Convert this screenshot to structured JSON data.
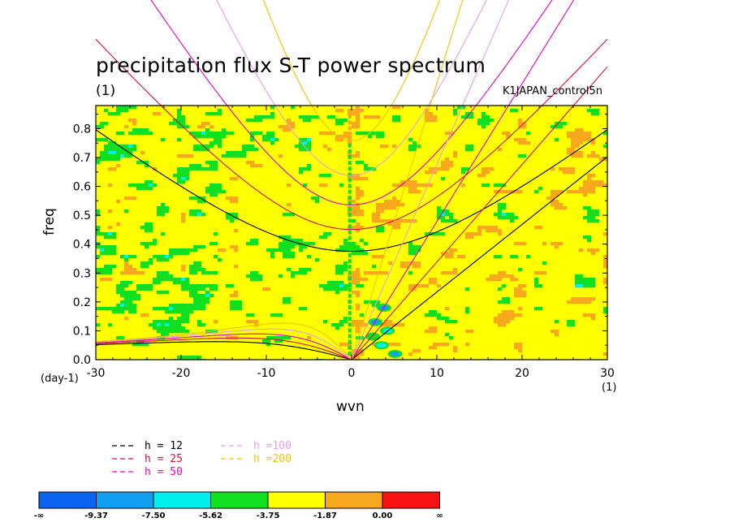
{
  "title": "precipitation flux S-T power spectrum",
  "subtitle": "(1)",
  "case_id": "K1JAPAN_control5n",
  "chart_data": {
    "type": "heatmap",
    "title": "precipitation flux S-T power spectrum",
    "xlabel": "wvn",
    "ylabel": "freq",
    "x_unit": "(1)",
    "y_unit": "(day-1)",
    "xlim": [
      -30,
      30
    ],
    "ylim": [
      0.0,
      0.88
    ],
    "x_ticks": [
      -30,
      -20,
      -10,
      0,
      10,
      20,
      30
    ],
    "x_tick_labels": [
      "-30",
      "-20",
      "-10",
      "0",
      "10",
      "20",
      "30"
    ],
    "y_ticks": [
      0.0,
      0.1,
      0.2,
      0.3,
      0.4,
      0.5,
      0.6,
      0.7,
      0.8
    ],
    "y_tick_labels": [
      "0.0",
      "0.1",
      "0.2",
      "0.3",
      "0.4",
      "0.5",
      "0.6",
      "0.7",
      "0.8"
    ],
    "colorbar": {
      "levels": [
        "-∞",
        "-9.37",
        "-7.50",
        "-5.62",
        "-3.75",
        "-1.87",
        "0.00",
        "∞"
      ],
      "colors": [
        "#0a64f0",
        "#10a0f0",
        "#00f0f0",
        "#10e020",
        "#ffff00",
        "#f8a81c",
        "#f81010"
      ]
    },
    "field": {
      "background_color": "#ffff00",
      "dominant_level": "-3.75 to -1.87"
    },
    "dispersion_curves": [
      {
        "legend": "h = 12",
        "equivalent_depth_m": 12,
        "color": "#000000"
      },
      {
        "legend": "h = 25",
        "equivalent_depth_m": 25,
        "color": "#d01040"
      },
      {
        "legend": "h = 50",
        "equivalent_depth_m": 50,
        "color": "#e000c0"
      },
      {
        "legend": "h =100",
        "equivalent_depth_m": 100,
        "color": "#e0a0e0"
      },
      {
        "legend": "h =200",
        "equivalent_depth_m": 200,
        "color": "#f0c000"
      }
    ]
  }
}
